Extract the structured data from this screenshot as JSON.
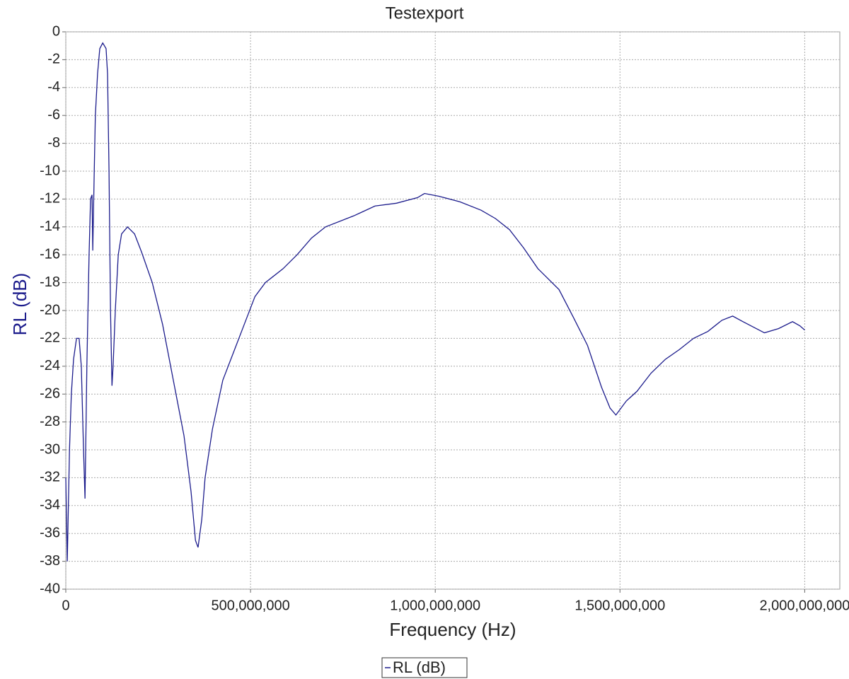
{
  "chart_data": {
    "type": "line",
    "title": "Testexport",
    "x_label": "Frequency (Hz)",
    "y_label": "RL (dB)",
    "x": [
      0,
      4000000,
      10000000,
      15000000,
      21000000,
      29000000,
      36000000,
      42000000,
      48000000,
      52000000,
      57000000,
      63000000,
      67000000,
      71000000,
      73000000,
      77000000,
      80000000,
      86000000,
      92000000,
      100000000,
      109000000,
      113000000,
      117000000,
      121000000,
      125000000,
      128000000,
      134000000,
      142000000,
      151000000,
      167000000,
      186000000,
      205000000,
      234000000,
      262000000,
      291000000,
      320000000,
      339000000,
      351000000,
      358000000,
      368000000,
      377000000,
      397000000,
      425000000,
      454000000,
      483000000,
      512000000,
      540000000,
      588000000,
      626000000,
      665000000,
      703000000,
      780000000,
      837000000,
      895000000,
      952000000,
      971000000,
      1010000000,
      1067000000,
      1124000000,
      1163000000,
      1201000000,
      1239000000,
      1278000000,
      1335000000,
      1374000000,
      1412000000,
      1450000000,
      1473000000,
      1489000000,
      1517000000,
      1546000000,
      1584000000,
      1623000000,
      1661000000,
      1699000000,
      1738000000,
      1776000000,
      1805000000,
      1833000000,
      1862000000,
      1891000000,
      1929000000,
      1967000000,
      1987000000,
      2000000000
    ],
    "series": [
      {
        "name": "RL (dB)",
        "color": "#1c1c8c",
        "values": [
          -32,
          -38,
          -30,
          -26,
          -23.5,
          -22,
          -22,
          -24,
          -30,
          -33.5,
          -24,
          -16,
          -12,
          -11.7,
          -15.7,
          -10,
          -6,
          -3,
          -1.2,
          -0.8,
          -1.2,
          -3,
          -10,
          -20,
          -25.4,
          -24,
          -20,
          -16,
          -14.5,
          -14,
          -14.5,
          -15.8,
          -18,
          -21,
          -25,
          -29,
          -33,
          -36.5,
          -37,
          -35,
          -32,
          -28.5,
          -25,
          -23,
          -21,
          -19,
          -18,
          -17,
          -16,
          -14.8,
          -14,
          -13.2,
          -12.5,
          -12.3,
          -11.9,
          -11.6,
          -11.8,
          -12.2,
          -12.8,
          -13.4,
          -14.2,
          -15.5,
          -17,
          -18.5,
          -20.5,
          -22.5,
          -25.5,
          -27,
          -27.5,
          -26.5,
          -25.8,
          -24.5,
          -23.5,
          -22.8,
          -22,
          -21.5,
          -20.7,
          -20.4,
          -20.8,
          -21.2,
          -21.6,
          -21.3,
          -20.8,
          -21.1,
          -21.4
        ]
      }
    ],
    "xlim": [
      0,
      2095000000
    ],
    "xticks": [
      0,
      {
        "value": 500000000,
        "label": "500,000,000"
      },
      {
        "value": 1000000000,
        "label": "1,000,000,000"
      },
      {
        "value": 1500000000,
        "label": "1,500,000,000"
      },
      {
        "value": 2000000000,
        "label": "2,000,000,000"
      }
    ],
    "ylim": [
      -40,
      0
    ],
    "yticks": [
      0,
      -2,
      -4,
      -6,
      -8,
      -10,
      -12,
      -14,
      -16,
      -18,
      -20,
      -22,
      -24,
      -26,
      -28,
      -30,
      -32,
      -34,
      -36,
      -38,
      -40
    ],
    "grid": true,
    "legend": "bottom"
  }
}
